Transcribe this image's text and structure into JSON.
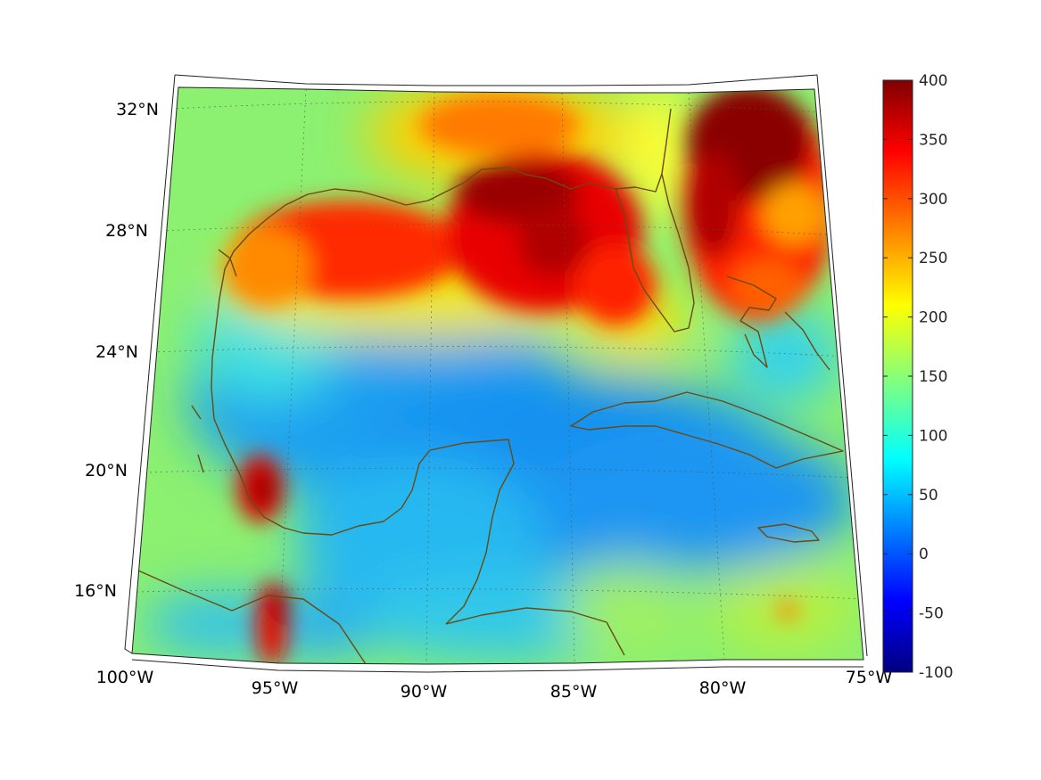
{
  "chart_data": {
    "type": "heatmap",
    "title": "",
    "projection": "conic",
    "region": "Gulf of Mexico and Caribbean",
    "lon_range": [
      -100,
      -75
    ],
    "lat_range": [
      14,
      33
    ],
    "x_ticks": [
      {
        "value": -100,
        "label": "100°W"
      },
      {
        "value": -95,
        "label": "95°W"
      },
      {
        "value": -90,
        "label": "90°W"
      },
      {
        "value": -85,
        "label": "85°W"
      },
      {
        "value": -80,
        "label": "80°W"
      },
      {
        "value": -75,
        "label": "75°W"
      }
    ],
    "y_ticks": [
      {
        "value": 16,
        "label": "16°N"
      },
      {
        "value": 20,
        "label": "20°N"
      },
      {
        "value": 24,
        "label": "24°N"
      },
      {
        "value": 28,
        "label": "28°N"
      },
      {
        "value": 32,
        "label": "32°N"
      }
    ],
    "grid": true,
    "colormap": "jet",
    "coastline_color": "#6b4a12",
    "colorbar": {
      "placement": "right",
      "range": [
        -100,
        400
      ],
      "ticks": [
        "400",
        "350",
        "300",
        "250",
        "200",
        "150",
        "100",
        "50",
        "0",
        "-50",
        "-100"
      ]
    },
    "field_regions": [
      {
        "name": "northern Gulf shelf",
        "lon": [
          -94,
          -84
        ],
        "lat": [
          26,
          30
        ],
        "approx_value": 340
      },
      {
        "name": "Mississippi Bight / Florida panhandle",
        "lon": [
          -89,
          -85
        ],
        "lat": [
          27.5,
          30
        ],
        "approx_value": 380
      },
      {
        "name": "Atlantic east of Florida",
        "lon": [
          -80,
          -76
        ],
        "lat": [
          26,
          32
        ],
        "approx_value": 370
      },
      {
        "name": "central Gulf of Mexico",
        "lon": [
          -96,
          -84
        ],
        "lat": [
          20,
          25
        ],
        "approx_value": 60
      },
      {
        "name": "western Caribbean Sea",
        "lon": [
          -87,
          -76
        ],
        "lat": [
          16,
          21
        ],
        "approx_value": 50
      },
      {
        "name": "Bay of Campeche coast",
        "lon": [
          -97,
          -95
        ],
        "lat": [
          18,
          20
        ],
        "approx_value": 360
      },
      {
        "name": "Gulf of Tehuantepec",
        "lon": [
          -95.5,
          -94.5
        ],
        "lat": [
          14,
          16.5
        ],
        "approx_value": 350
      },
      {
        "name": "southern Caribbean",
        "lon": [
          -84,
          -76
        ],
        "lat": [
          14,
          16
        ],
        "approx_value": 180
      }
    ]
  }
}
